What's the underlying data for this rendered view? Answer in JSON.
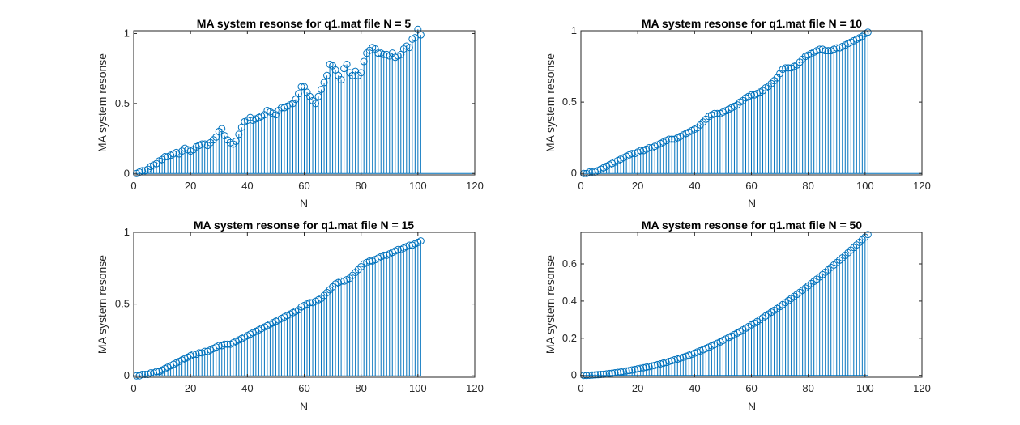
{
  "figure": {
    "background": "#ffffff",
    "stem_color": "#0072BD",
    "axis_color": "#262626"
  },
  "chart_data": [
    {
      "type": "stem",
      "title": "MA system resonse for q1.mat file N = 5",
      "xlabel": "N",
      "ylabel": "MA system resonse",
      "xlim": [
        0,
        120
      ],
      "ylim": [
        -0.01,
        1.02
      ],
      "xticks": [
        "0",
        "20",
        "40",
        "60",
        "80",
        "100",
        "120"
      ],
      "yticks": [
        {
          "v": 0,
          "t": "0"
        },
        {
          "v": 0.5,
          "t": "0.5"
        },
        {
          "v": 1,
          "t": "1"
        }
      ],
      "x_start": 1,
      "values": [
        0.0,
        0.01,
        0.02,
        0.02,
        0.03,
        0.05,
        0.06,
        0.07,
        0.09,
        0.1,
        0.12,
        0.12,
        0.13,
        0.14,
        0.15,
        0.14,
        0.16,
        0.18,
        0.17,
        0.16,
        0.17,
        0.19,
        0.2,
        0.21,
        0.21,
        0.2,
        0.22,
        0.24,
        0.26,
        0.3,
        0.32,
        0.27,
        0.24,
        0.22,
        0.21,
        0.23,
        0.28,
        0.33,
        0.37,
        0.38,
        0.4,
        0.38,
        0.39,
        0.4,
        0.41,
        0.42,
        0.45,
        0.44,
        0.43,
        0.42,
        0.45,
        0.47,
        0.47,
        0.48,
        0.49,
        0.5,
        0.53,
        0.57,
        0.62,
        0.62,
        0.58,
        0.55,
        0.52,
        0.5,
        0.55,
        0.6,
        0.65,
        0.7,
        0.78,
        0.77,
        0.74,
        0.7,
        0.67,
        0.75,
        0.78,
        0.72,
        0.7,
        0.73,
        0.7,
        0.72,
        0.8,
        0.86,
        0.88,
        0.9,
        0.89,
        0.86,
        0.86,
        0.85,
        0.85,
        0.84,
        0.86,
        0.83,
        0.84,
        0.85,
        0.89,
        0.91,
        0.9,
        0.96,
        0.97,
        1.03,
        0.99
      ],
      "baseline_to": 120
    },
    {
      "type": "stem",
      "title": "MA system resonse for q1.mat file N = 10",
      "xlabel": "N",
      "ylabel": "MA system resonse",
      "xlim": [
        0,
        120
      ],
      "ylim": [
        -0.01,
        1.0
      ],
      "xticks": [
        "0",
        "20",
        "40",
        "60",
        "80",
        "100",
        "120"
      ],
      "yticks": [
        {
          "v": 0,
          "t": "0"
        },
        {
          "v": 0.5,
          "t": "0.5"
        },
        {
          "v": 1,
          "t": "1"
        }
      ],
      "x_start": 1,
      "values": [
        0.0,
        0.0,
        0.01,
        0.01,
        0.01,
        0.02,
        0.03,
        0.04,
        0.05,
        0.06,
        0.07,
        0.08,
        0.09,
        0.1,
        0.11,
        0.12,
        0.13,
        0.14,
        0.14,
        0.15,
        0.16,
        0.16,
        0.17,
        0.18,
        0.18,
        0.19,
        0.2,
        0.21,
        0.22,
        0.23,
        0.24,
        0.24,
        0.24,
        0.25,
        0.26,
        0.27,
        0.28,
        0.29,
        0.3,
        0.31,
        0.32,
        0.34,
        0.36,
        0.38,
        0.4,
        0.41,
        0.42,
        0.42,
        0.42,
        0.43,
        0.44,
        0.45,
        0.46,
        0.47,
        0.48,
        0.5,
        0.51,
        0.53,
        0.54,
        0.55,
        0.55,
        0.56,
        0.57,
        0.58,
        0.6,
        0.61,
        0.63,
        0.65,
        0.67,
        0.7,
        0.73,
        0.74,
        0.74,
        0.74,
        0.75,
        0.76,
        0.78,
        0.8,
        0.82,
        0.83,
        0.84,
        0.85,
        0.86,
        0.87,
        0.87,
        0.86,
        0.86,
        0.86,
        0.87,
        0.88,
        0.88,
        0.89,
        0.9,
        0.91,
        0.92,
        0.93,
        0.94,
        0.95,
        0.96,
        0.98,
        0.99
      ],
      "baseline_to": 120
    },
    {
      "type": "stem",
      "title": "MA system resonse for q1.mat file N = 15",
      "xlabel": "N",
      "ylabel": "MA system resonse",
      "xlim": [
        0,
        120
      ],
      "ylim": [
        -0.01,
        1.0
      ],
      "xticks": [
        "0",
        "20",
        "40",
        "60",
        "80",
        "100",
        "120"
      ],
      "yticks": [
        {
          "v": 0,
          "t": "0"
        },
        {
          "v": 0.5,
          "t": "0.5"
        },
        {
          "v": 1,
          "t": "1"
        }
      ],
      "x_start": 1,
      "values": [
        0.0,
        0.0,
        0.01,
        0.01,
        0.01,
        0.02,
        0.02,
        0.03,
        0.03,
        0.04,
        0.05,
        0.06,
        0.07,
        0.08,
        0.09,
        0.1,
        0.11,
        0.12,
        0.13,
        0.14,
        0.15,
        0.15,
        0.16,
        0.16,
        0.17,
        0.17,
        0.18,
        0.19,
        0.2,
        0.21,
        0.21,
        0.22,
        0.22,
        0.22,
        0.23,
        0.24,
        0.25,
        0.26,
        0.27,
        0.28,
        0.29,
        0.3,
        0.31,
        0.32,
        0.33,
        0.34,
        0.35,
        0.36,
        0.37,
        0.38,
        0.39,
        0.4,
        0.41,
        0.42,
        0.43,
        0.44,
        0.45,
        0.46,
        0.48,
        0.49,
        0.5,
        0.51,
        0.51,
        0.52,
        0.53,
        0.54,
        0.56,
        0.58,
        0.6,
        0.62,
        0.64,
        0.65,
        0.66,
        0.66,
        0.67,
        0.68,
        0.7,
        0.72,
        0.74,
        0.76,
        0.78,
        0.79,
        0.8,
        0.8,
        0.81,
        0.82,
        0.83,
        0.84,
        0.84,
        0.85,
        0.86,
        0.87,
        0.88,
        0.88,
        0.89,
        0.9,
        0.91,
        0.91,
        0.92,
        0.93,
        0.94
      ],
      "baseline_to": 101
    },
    {
      "type": "stem",
      "title": "MA system resonse for q1.mat file N = 50",
      "xlabel": "N",
      "ylabel": "MA system resonse",
      "xlim": [
        0,
        120
      ],
      "ylim": [
        -0.01,
        0.77
      ],
      "xticks": [
        "0",
        "20",
        "40",
        "60",
        "80",
        "100",
        "120"
      ],
      "yticks": [
        {
          "v": 0,
          "t": "0"
        },
        {
          "v": 0.2,
          "t": "0.2"
        },
        {
          "v": 0.4,
          "t": "0.4"
        },
        {
          "v": 0.6,
          "t": "0.6"
        }
      ],
      "x_start": 1,
      "values": [
        0.0,
        0.0,
        0.001,
        0.002,
        0.003,
        0.004,
        0.005,
        0.006,
        0.008,
        0.01,
        0.012,
        0.014,
        0.016,
        0.018,
        0.021,
        0.024,
        0.026,
        0.029,
        0.032,
        0.035,
        0.038,
        0.041,
        0.044,
        0.047,
        0.051,
        0.054,
        0.058,
        0.062,
        0.066,
        0.07,
        0.075,
        0.079,
        0.084,
        0.088,
        0.093,
        0.098,
        0.103,
        0.108,
        0.114,
        0.12,
        0.126,
        0.132,
        0.138,
        0.145,
        0.152,
        0.159,
        0.166,
        0.173,
        0.18,
        0.188,
        0.196,
        0.204,
        0.212,
        0.22,
        0.228,
        0.236,
        0.245,
        0.254,
        0.263,
        0.272,
        0.281,
        0.29,
        0.3,
        0.31,
        0.32,
        0.33,
        0.34,
        0.35,
        0.36,
        0.37,
        0.381,
        0.392,
        0.403,
        0.414,
        0.425,
        0.436,
        0.447,
        0.458,
        0.47,
        0.482,
        0.494,
        0.506,
        0.518,
        0.53,
        0.542,
        0.555,
        0.568,
        0.581,
        0.594,
        0.607,
        0.62,
        0.633,
        0.646,
        0.66,
        0.674,
        0.688,
        0.702,
        0.716,
        0.73,
        0.744,
        0.758
      ],
      "baseline_to": 101
    }
  ]
}
